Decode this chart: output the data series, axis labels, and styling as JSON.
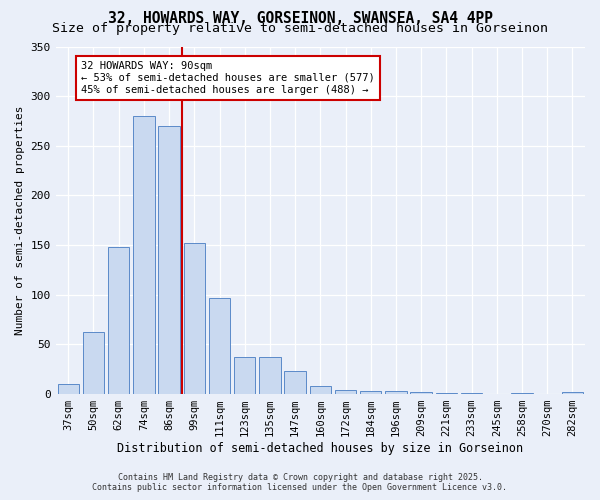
{
  "title1": "32, HOWARDS WAY, GORSEINON, SWANSEA, SA4 4PP",
  "title2": "Size of property relative to semi-detached houses in Gorseinon",
  "xlabel": "Distribution of semi-detached houses by size in Gorseinon",
  "ylabel": "Number of semi-detached properties",
  "categories": [
    "37sqm",
    "50sqm",
    "62sqm",
    "74sqm",
    "86sqm",
    "99sqm",
    "111sqm",
    "123sqm",
    "135sqm",
    "147sqm",
    "160sqm",
    "172sqm",
    "184sqm",
    "196sqm",
    "209sqm",
    "221sqm",
    "233sqm",
    "245sqm",
    "258sqm",
    "270sqm",
    "282sqm"
  ],
  "values": [
    10,
    63,
    148,
    280,
    270,
    152,
    97,
    37,
    37,
    23,
    8,
    4,
    3,
    3,
    2,
    1,
    1,
    0,
    1,
    0,
    2
  ],
  "bar_color": "#c9d9f0",
  "bar_edge_color": "#5b8ac9",
  "vline_x": 4.5,
  "vline_color": "#cc0000",
  "annotation_title": "32 HOWARDS WAY: 90sqm",
  "annotation_line1": "← 53% of semi-detached houses are smaller (577)",
  "annotation_line2": "45% of semi-detached houses are larger (488) →",
  "annotation_box_color": "#ffffff",
  "annotation_box_edge": "#cc0000",
  "ylim": [
    0,
    350
  ],
  "yticks": [
    0,
    50,
    100,
    150,
    200,
    250,
    300,
    350
  ],
  "footnote1": "Contains HM Land Registry data © Crown copyright and database right 2025.",
  "footnote2": "Contains public sector information licensed under the Open Government Licence v3.0.",
  "bg_color": "#eaeff9",
  "plot_bg_color": "#eaeff9",
  "title_fontsize": 10.5,
  "subtitle_fontsize": 9.5,
  "annotation_fontsize": 7.5,
  "tick_fontsize": 7.5,
  "ylabel_fontsize": 8,
  "xlabel_fontsize": 8.5,
  "footnote_fontsize": 6.0
}
